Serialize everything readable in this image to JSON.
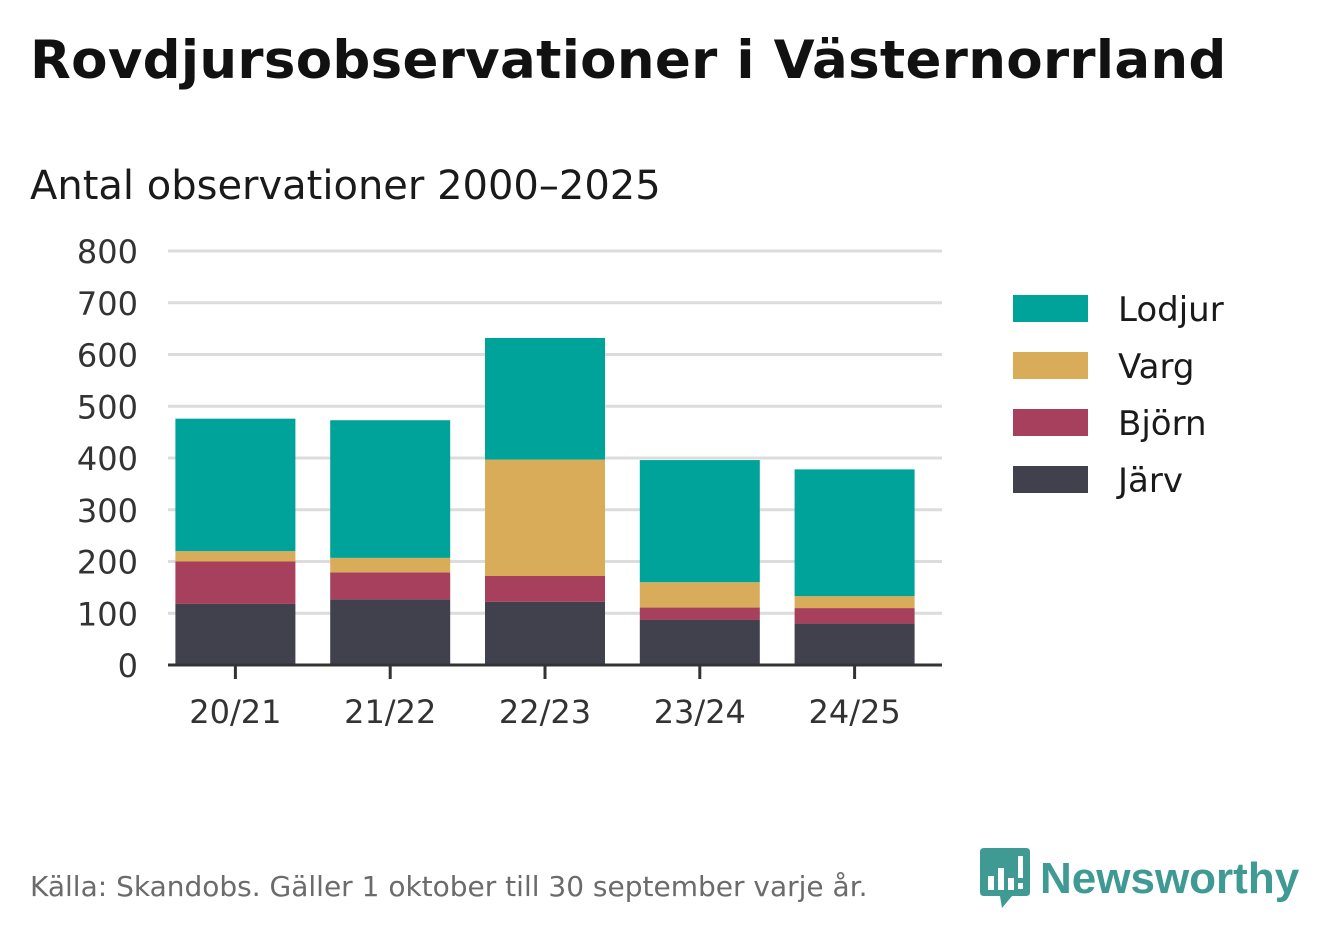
{
  "chart_data": {
    "type": "bar",
    "stacked": true,
    "title": "Rovdjursobservationer i Västernorrland",
    "subtitle": "Antal observationer 2000–2025",
    "categories": [
      "20/21",
      "21/22",
      "22/23",
      "23/24",
      "24/25"
    ],
    "series": [
      {
        "name": "Järv",
        "color": "#41404d",
        "values": [
          118,
          127,
          122,
          87,
          80
        ]
      },
      {
        "name": "Björn",
        "color": "#a6405c",
        "values": [
          82,
          52,
          50,
          24,
          30
        ]
      },
      {
        "name": "Varg",
        "color": "#d9ac5a",
        "values": [
          20,
          28,
          225,
          49,
          23
        ]
      },
      {
        "name": "Lodjur",
        "color": "#00a39a",
        "values": [
          256,
          266,
          235,
          236,
          245
        ]
      }
    ],
    "legend_order": [
      "Lodjur",
      "Varg",
      "Björn",
      "Järv"
    ],
    "yticks": [
      0,
      100,
      200,
      300,
      400,
      500,
      600,
      700,
      800
    ],
    "ylim": [
      0,
      800
    ],
    "xlabel": "",
    "ylabel": "",
    "grid": true,
    "legend_position": "right"
  },
  "footer": {
    "note": "Källa: Skandobs. Gäller 1 oktober till 30 september varje år.",
    "brand": "Newsworthy",
    "brand_color": "#3e9a93"
  }
}
